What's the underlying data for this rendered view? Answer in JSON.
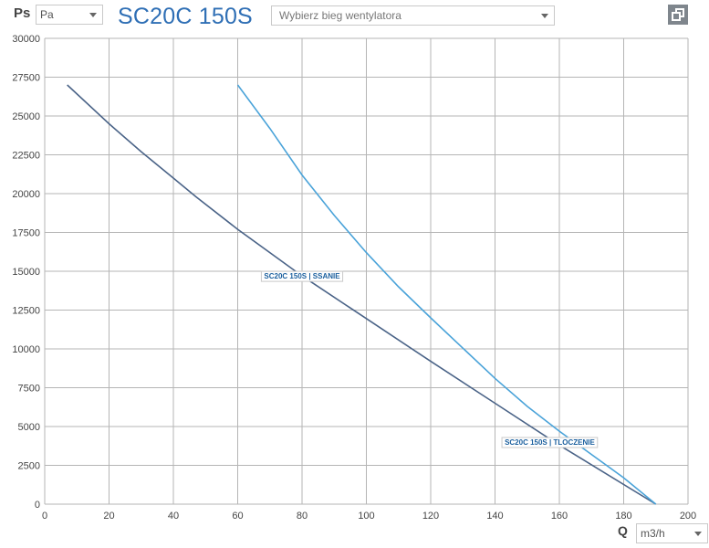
{
  "header": {
    "y_axis_symbol": "Ps",
    "unit_select": {
      "value": "Pa"
    },
    "title": "SC20C 150S",
    "fan_select": {
      "placeholder": "Wybierz bieg wentylatora"
    }
  },
  "footer": {
    "x_axis_symbol": "Q",
    "flow_unit_select": {
      "value": "m3/h"
    }
  },
  "icons": {
    "corner_button": "window-restore-icon"
  },
  "colors": {
    "title": "#2f6fb5",
    "grid": "#b5b5b5",
    "ssanie": "#4a6387",
    "tloczenie": "#4aa3d9",
    "label_text": "#1a5f9e"
  },
  "chart_data": {
    "type": "line",
    "xlim": [
      0,
      200
    ],
    "ylim": [
      0,
      30000
    ],
    "x_ticks": [
      0,
      20,
      40,
      60,
      80,
      100,
      120,
      140,
      160,
      180,
      200
    ],
    "y_ticks": [
      0,
      2500,
      5000,
      7500,
      10000,
      12500,
      15000,
      17500,
      20000,
      22500,
      25000,
      27500,
      30000
    ],
    "grid": true,
    "series": [
      {
        "name": "SC20C 150S | SSANIE",
        "color": "#4a6387",
        "x": [
          7,
          20,
          30,
          40,
          47,
          60,
          80,
          100,
          120,
          140,
          160,
          190
        ],
        "y": [
          27000,
          24500,
          22700,
          21000,
          19800,
          17700,
          14700,
          11950,
          9200,
          6500,
          3800,
          0
        ],
        "label_at": [
          80,
          14700
        ]
      },
      {
        "name": "SC20C 150S | TLOCZENIE",
        "color": "#4aa3d9",
        "x": [
          60,
          70,
          80,
          90,
          100,
          110,
          120,
          130,
          140,
          150,
          160,
          170,
          180,
          190
        ],
        "y": [
          27000,
          24200,
          21200,
          18600,
          16200,
          14000,
          12000,
          10050,
          8100,
          6300,
          4700,
          3200,
          1700,
          0
        ],
        "label_at": [
          157,
          4000
        ]
      }
    ]
  }
}
